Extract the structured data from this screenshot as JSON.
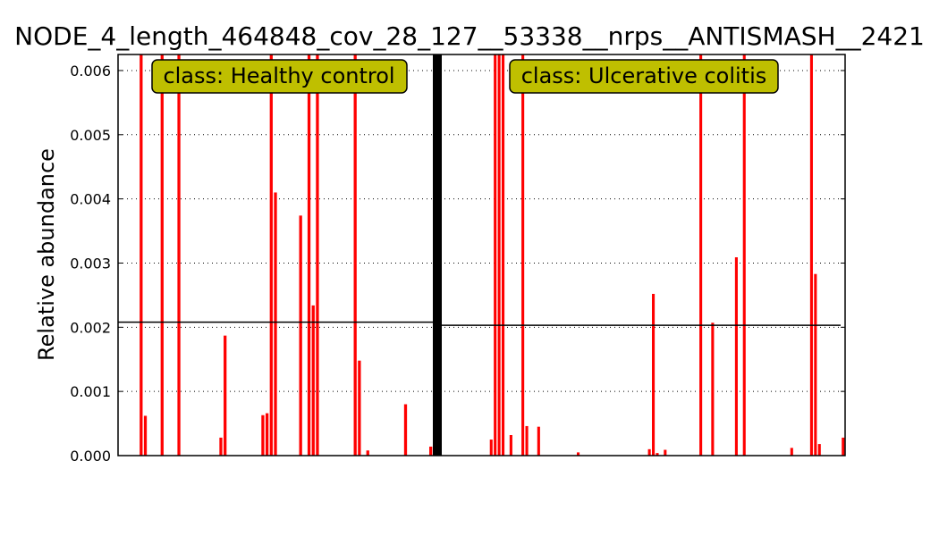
{
  "chart_data": {
    "type": "bar",
    "title": "NODE_4_length_464848_cov_28_127__53338__nrps__ANTISMASH__2421",
    "xlabel": "",
    "ylabel": "Relative abundance",
    "ylim": [
      0,
      0.00625
    ],
    "yticks": [
      "0.000",
      "0.001",
      "0.002",
      "0.003",
      "0.004",
      "0.005",
      "0.006"
    ],
    "grid": "horizontal dotted",
    "bar_color": "#ff0000",
    "divider_color": "#000000",
    "class_box_color": "#bfbf00",
    "groups": [
      {
        "class_label": "class: Healthy control",
        "mean": 0.00208,
        "values": [
          0,
          0,
          0,
          0,
          0,
          0.0065,
          0.00062,
          0,
          0,
          0,
          0.0065,
          0,
          0,
          0,
          0.0065,
          0,
          0,
          0,
          0,
          0,
          0,
          0,
          0,
          0,
          0.00028,
          0.00187,
          0,
          0,
          0,
          0,
          0,
          0,
          0,
          0,
          0.00063,
          0.00066,
          0.0065,
          0.0041,
          0,
          0,
          0,
          0,
          0,
          0.00374,
          0,
          0.0065,
          0.00234,
          0.0065,
          0,
          0,
          0,
          0,
          0,
          0,
          0,
          0,
          0.0065,
          0.00148,
          0,
          8e-05,
          0,
          0,
          0,
          0,
          0,
          0,
          0,
          0,
          0.0008,
          0,
          0,
          0,
          0,
          0,
          0.00014
        ]
      },
      {
        "class_label": "class: Ulcerative colitis",
        "mean": 0.00203,
        "values": [
          0,
          0,
          0,
          0,
          0,
          0,
          0,
          0,
          0,
          0,
          0,
          0,
          0.00025,
          0.0065,
          0.0065,
          0.0065,
          0,
          0.00032,
          0,
          0,
          0.0065,
          0.00046,
          0,
          0,
          0.00045,
          0,
          0,
          0,
          0,
          0,
          0,
          0,
          0,
          0,
          5e-05,
          0,
          0,
          0,
          0,
          0,
          0,
          0,
          0,
          0,
          0,
          0,
          0,
          0,
          0,
          0,
          0,
          0,
          0.0001,
          0.00252,
          4e-05,
          0,
          9e-05,
          0,
          0,
          0,
          0,
          0,
          0,
          0,
          0,
          0.0065,
          0,
          0,
          0.00207,
          0,
          0,
          0,
          0,
          0,
          0.00309,
          0,
          0.0065,
          0,
          0,
          0,
          0,
          0,
          0,
          0,
          0,
          0,
          0,
          0,
          0.00012,
          0,
          0,
          0,
          0,
          0.0065,
          0.00283,
          0.00018,
          0,
          0,
          0,
          0,
          0,
          0.00028
        ]
      }
    ]
  }
}
